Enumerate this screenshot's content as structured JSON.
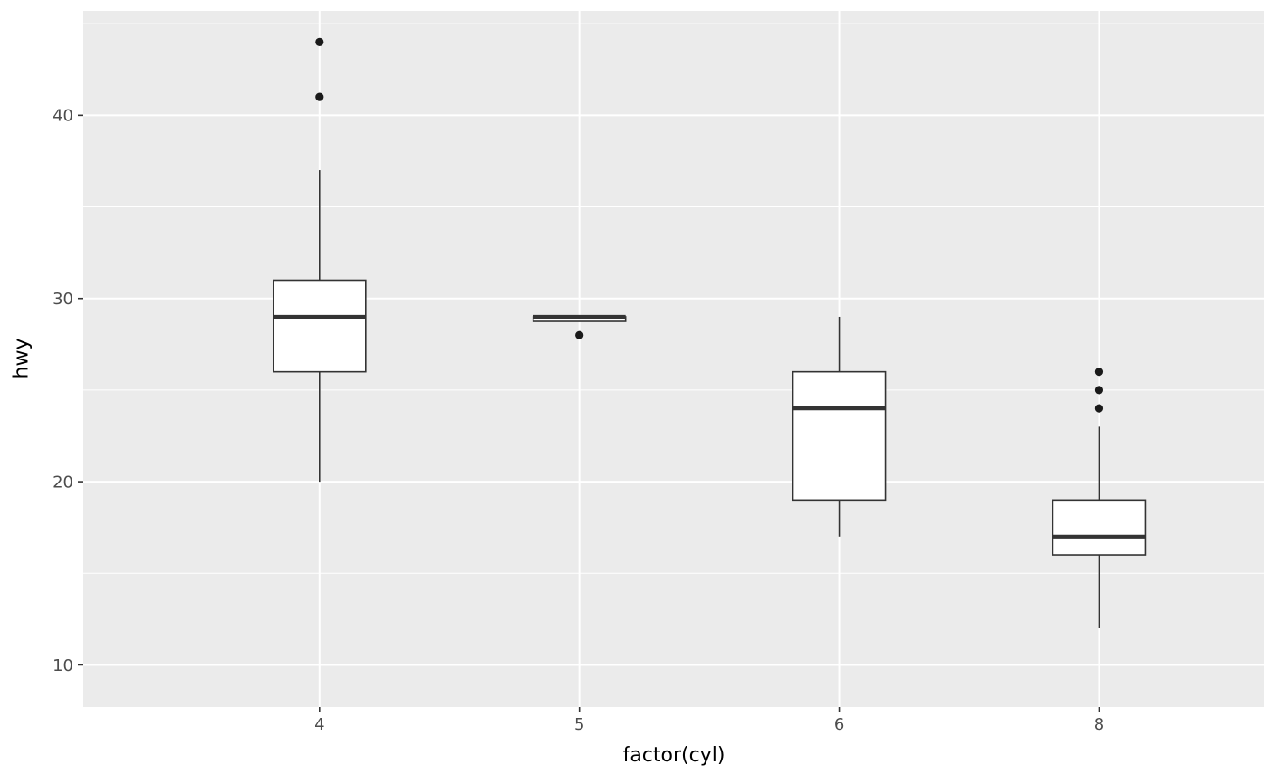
{
  "chart_data": {
    "type": "boxplot",
    "title": "",
    "xlabel": "factor(cyl)",
    "ylabel": "hwy",
    "categories": [
      "4",
      "5",
      "6",
      "8"
    ],
    "boxes": [
      {
        "category": "4",
        "whisker_low": 20,
        "q1": 26,
        "median": 29,
        "q3": 31,
        "whisker_high": 37,
        "outliers": [
          41,
          44
        ]
      },
      {
        "category": "5",
        "whisker_low": 28.75,
        "q1": 28.75,
        "median": 29,
        "q3": 29,
        "whisker_high": 29,
        "outliers": [
          28
        ]
      },
      {
        "category": "6",
        "whisker_low": 17,
        "q1": 19,
        "median": 24,
        "q3": 26,
        "whisker_high": 29,
        "outliers": []
      },
      {
        "category": "8",
        "whisker_low": 12,
        "q1": 16,
        "median": 17,
        "q3": 19,
        "whisker_high": 23,
        "outliers": [
          24,
          25,
          26
        ]
      }
    ],
    "y_ticks": [
      10,
      20,
      30,
      40
    ],
    "y_minor_ticks": [
      15,
      25,
      35,
      45
    ],
    "ylim": [
      7.7,
      45.7
    ],
    "grid": true,
    "legend": "none",
    "style": {
      "panel_bg": "#EBEBEB",
      "grid_major_color": "#FFFFFF",
      "grid_minor_color": "#FFFFFF",
      "box_fill": "#FFFFFF",
      "box_stroke": "#333333",
      "median_color": "#333333",
      "outlier_color": "#1A1A1A",
      "tick_mark_color": "#333333",
      "axis_text_color": "#4D4D4D",
      "axis_title_color": "#000000"
    }
  }
}
